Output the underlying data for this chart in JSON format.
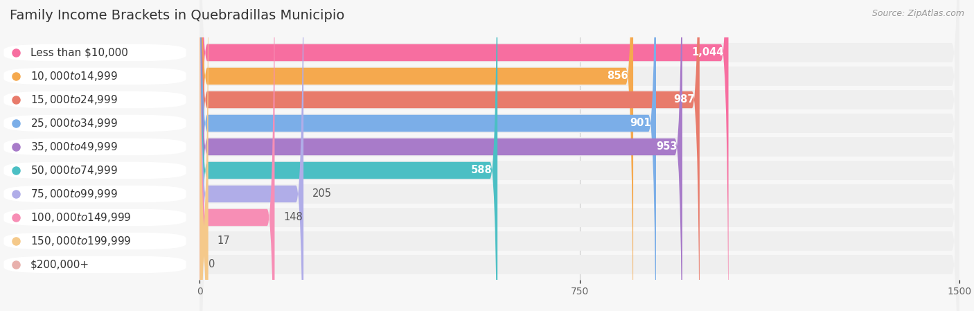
{
  "title": "Family Income Brackets in Quebradillas Municipio",
  "source": "Source: ZipAtlas.com",
  "categories": [
    "Less than $10,000",
    "$10,000 to $14,999",
    "$15,000 to $24,999",
    "$25,000 to $34,999",
    "$35,000 to $49,999",
    "$50,000 to $74,999",
    "$75,000 to $99,999",
    "$100,000 to $149,999",
    "$150,000 to $199,999",
    "$200,000+"
  ],
  "values": [
    1044,
    856,
    987,
    901,
    953,
    588,
    205,
    148,
    17,
    0
  ],
  "value_labels": [
    "1,044",
    "856",
    "987",
    "901",
    "953",
    "588",
    "205",
    "148",
    "17",
    "0"
  ],
  "colors": [
    "#F76EA0",
    "#F5A94E",
    "#E87B6B",
    "#7BAEE8",
    "#A87BC9",
    "#4BBFC4",
    "#B0ADE8",
    "#F78EB5",
    "#F5C98A",
    "#E8B0AC"
  ],
  "dot_colors": [
    "#F76EA0",
    "#F5A94E",
    "#E87B6B",
    "#7BAEE8",
    "#A87BC9",
    "#4BBFC4",
    "#B0ADE8",
    "#F78EB5",
    "#F5C98A",
    "#E8B0AC"
  ],
  "xlim": [
    0,
    1500
  ],
  "xticks": [
    0,
    750,
    1500
  ],
  "background_color": "#f7f7f7",
  "row_bg_color": "#efefef",
  "bar_bg_color": "#e4e4e4",
  "title_fontsize": 14,
  "label_fontsize": 11,
  "value_fontsize": 10.5,
  "source_fontsize": 9
}
